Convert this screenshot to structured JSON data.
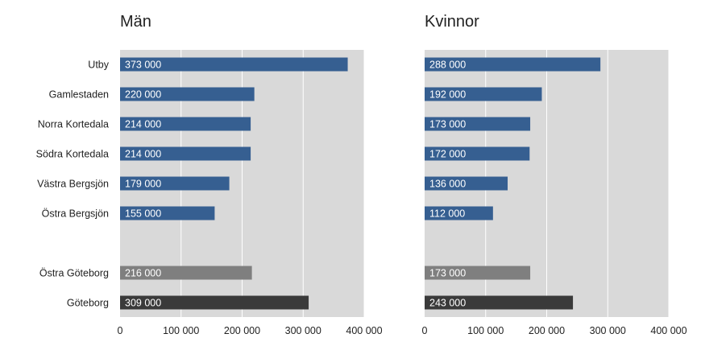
{
  "chart_data": {
    "type": "bar",
    "orientation": "horizontal",
    "categories": [
      "Utby",
      "Gamlestaden",
      "Norra Kortedala",
      "Södra Kortedala",
      "Västra Bergsjön",
      "Östra Bergsjön",
      "",
      "Östra Göteborg",
      "Göteborg"
    ],
    "panels": [
      {
        "title": "Män",
        "values": [
          373000,
          220000,
          214000,
          214000,
          179000,
          155000,
          null,
          216000,
          309000
        ],
        "labels": [
          "373 000",
          "220 000",
          "214 000",
          "214 000",
          "179 000",
          "155 000",
          "",
          "216 000",
          "309 000"
        ]
      },
      {
        "title": "Kvinnor",
        "values": [
          288000,
          192000,
          173000,
          172000,
          136000,
          112000,
          null,
          173000,
          243000
        ],
        "labels": [
          "288 000",
          "192 000",
          "173 000",
          "172 000",
          "136 000",
          "112 000",
          "",
          "173 000",
          "243 000"
        ]
      }
    ],
    "xlim": [
      0,
      400000
    ],
    "xticks": [
      0,
      100000,
      200000,
      300000,
      400000
    ],
    "xtick_labels": [
      "0",
      "100 000",
      "200 000",
      "300 000",
      "400 000"
    ],
    "grid": true,
    "colors": {
      "plot_background": "#d9d9d9",
      "gridline": "#ffffff",
      "district_bar": "#365f91",
      "östra_göteborg_bar": "#7f7f7f",
      "göteborg_bar": "#3a3a3a"
    }
  }
}
